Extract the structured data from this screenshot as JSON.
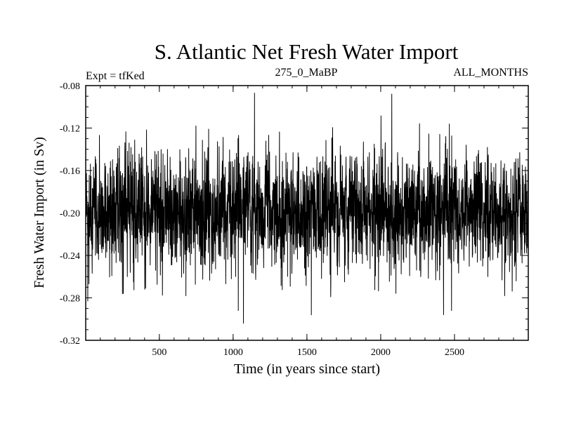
{
  "chart_data": {
    "type": "line",
    "title": "S. Atlantic Net Fresh Water Import",
    "subtitle_left": "Expt = tfKed",
    "subtitle_center": "275_0_MaBP",
    "subtitle_right": "ALL_MONTHS",
    "xlabel": "Time (in years since start)",
    "ylabel": "Fresh Water Import (in Sv)",
    "xlim": [
      1,
      3000
    ],
    "ylim": [
      -0.32,
      -0.08
    ],
    "xticks": [
      500,
      1000,
      1500,
      2000,
      2500
    ],
    "xtick_labels": [
      "500",
      "1000",
      "1500",
      "2000",
      "2500"
    ],
    "yticks": [
      -0.08,
      -0.12,
      -0.16,
      -0.2,
      -0.24,
      -0.28,
      -0.32
    ],
    "ytick_labels": [
      "-0.08",
      "-0.12",
      "-0.16",
      "-0.20",
      "-0.24",
      "-0.28",
      "-0.32"
    ],
    "grid": false,
    "color": "#000000",
    "series_stats": {
      "n_points": 3000,
      "mean": -0.198,
      "std": 0.027
    },
    "notable_points": [
      {
        "x": 15,
        "y": -0.283
      },
      {
        "x": 250,
        "y": -0.276
      },
      {
        "x": 680,
        "y": -0.278
      },
      {
        "x": 1035,
        "y": -0.292
      },
      {
        "x": 1070,
        "y": -0.304
      },
      {
        "x": 1145,
        "y": -0.087
      },
      {
        "x": 1530,
        "y": -0.296
      },
      {
        "x": 2075,
        "y": -0.088
      },
      {
        "x": 2480,
        "y": -0.292
      },
      {
        "x": 2840,
        "y": -0.278
      }
    ]
  }
}
